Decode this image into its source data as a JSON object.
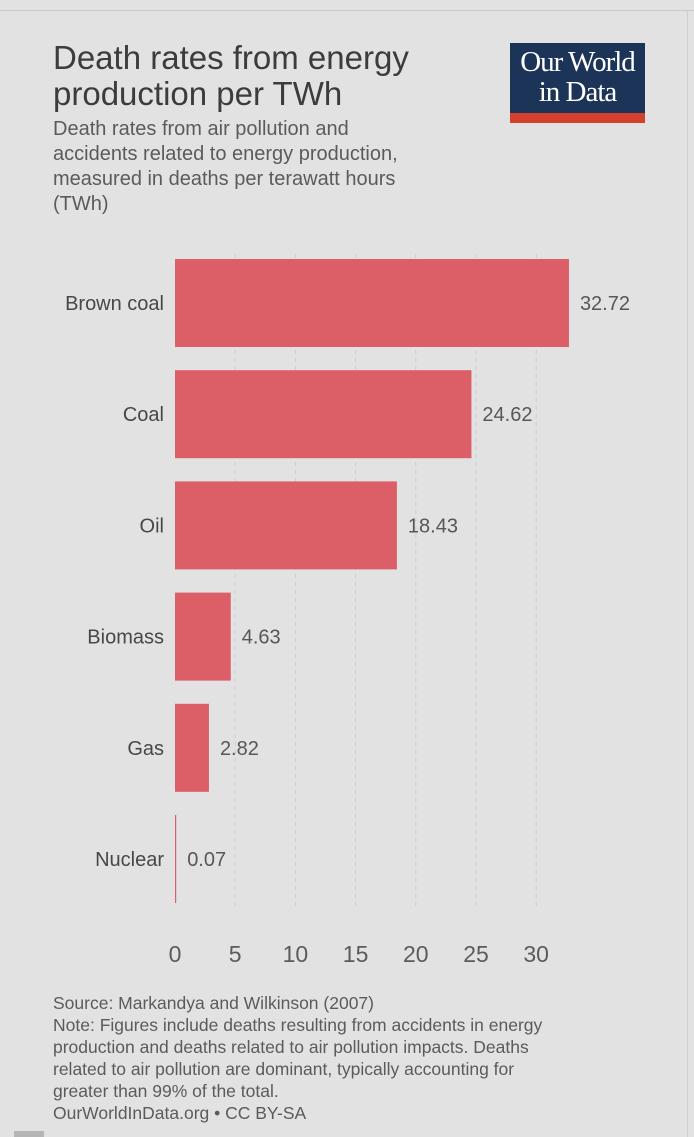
{
  "title_lines": [
    "Death rates from energy",
    "production per TWh"
  ],
  "subtitle_lines": [
    "Death rates from air pollution and",
    "accidents related to energy production,",
    "measured in deaths per terawatt hours",
    "(TWh)"
  ],
  "logo": {
    "line1": "Our World",
    "line2": "in Data",
    "bg_color": "#1d3459",
    "bar_color": "#d4402e"
  },
  "chart_data": {
    "type": "bar",
    "orientation": "horizontal",
    "categories": [
      "Brown coal",
      "Coal",
      "Oil",
      "Biomass",
      "Gas",
      "Nuclear"
    ],
    "values": [
      32.72,
      24.62,
      18.43,
      4.63,
      2.82,
      0.07
    ],
    "value_labels": [
      "32.72",
      "24.62",
      "18.43",
      "4.63",
      "2.82",
      "0.07"
    ],
    "xlim": [
      0,
      30
    ],
    "xticks": [
      0,
      5,
      10,
      15,
      20,
      25,
      30
    ],
    "xtick_labels": [
      "0",
      "5",
      "10",
      "15",
      "20",
      "25",
      "30"
    ],
    "grid": "vertical dashed",
    "bar_color": "#dc5e66"
  },
  "footer": {
    "lines": [
      "Source: Markandya and Wilkinson (2007)",
      "Note: Figures include deaths resulting from accidents in energy",
      "production and deaths related to air pollution impacts. Deaths",
      "related to air pollution are dominant, typically accounting for",
      "greater than 99% of the total.",
      "OurWorldInData.org • CC BY-SA"
    ]
  }
}
